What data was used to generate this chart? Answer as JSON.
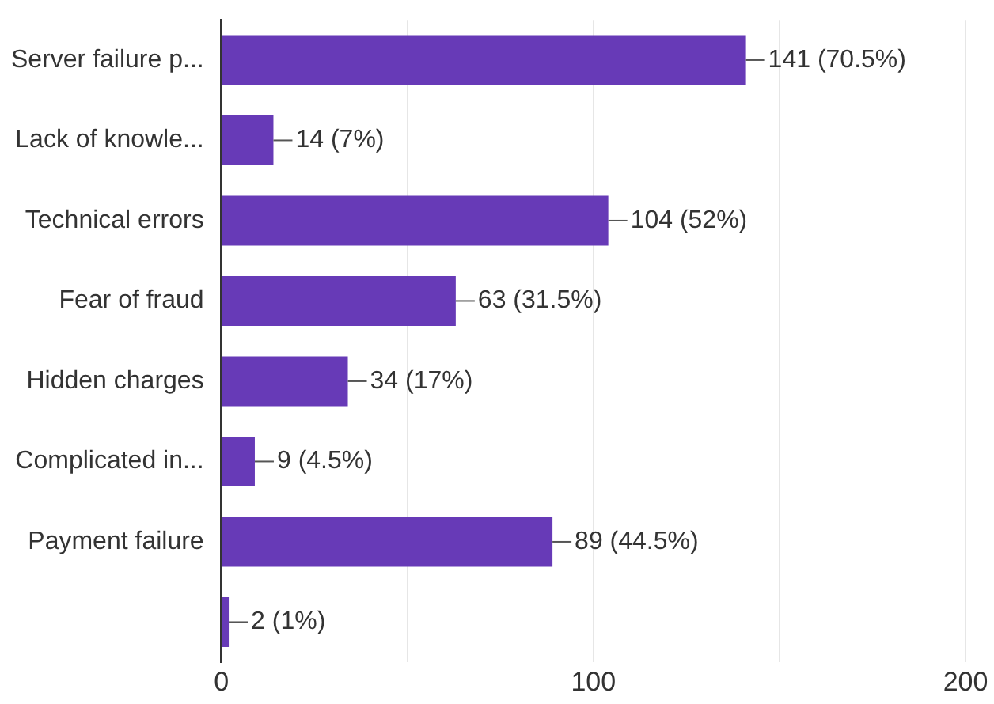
{
  "chart_data": {
    "type": "bar",
    "orientation": "horizontal",
    "categories": [
      "Server failure p...",
      "Lack of knowle...",
      "Technical errors",
      "Fear of fraud",
      "Hidden charges",
      "Complicated in...",
      "Payment failure",
      null
    ],
    "values": [
      141,
      14,
      104,
      63,
      34,
      9,
      89,
      2
    ],
    "value_labels": [
      "141 (70.5%)",
      "14 (7%)",
      "104 (52%)",
      "63 (31.5%)",
      "34 (17%)",
      "9 (4.5%)",
      "89 (44.5%)",
      "2 (1%)"
    ],
    "color": "#673ab7",
    "xlim": [
      0,
      200
    ],
    "xticks": [
      0,
      {
        "value": 50,
        "label": null
      },
      100,
      {
        "value": 150,
        "label": null
      },
      200
    ],
    "grid": "x",
    "legend": false
  }
}
